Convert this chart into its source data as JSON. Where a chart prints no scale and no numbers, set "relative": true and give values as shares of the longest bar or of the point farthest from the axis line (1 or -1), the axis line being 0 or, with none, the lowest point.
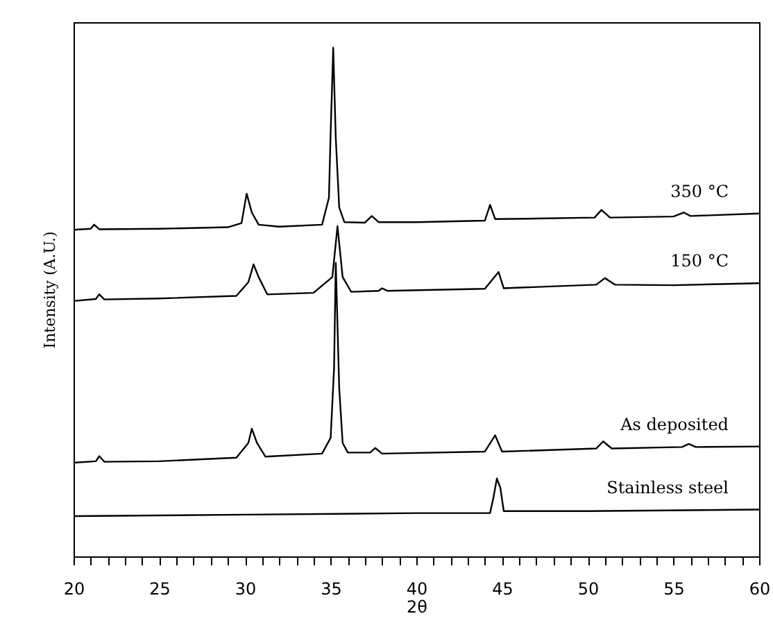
{
  "chart_data": {
    "type": "line",
    "relative": true,
    "xlabel": "2θ",
    "ylabel": "Intensity (A.U.)",
    "grid": false,
    "marker": "none",
    "line_style": "solid",
    "xlim": [
      20,
      60
    ],
    "xticks": [
      20,
      {
        "value": 21,
        "label": null
      },
      {
        "value": 22,
        "label": null
      },
      {
        "value": 23,
        "label": null
      },
      {
        "value": 24,
        "label": null
      },
      25,
      {
        "value": 26,
        "label": null
      },
      {
        "value": 27,
        "label": null
      },
      {
        "value": 28,
        "label": null
      },
      {
        "value": 29,
        "label": null
      },
      30,
      {
        "value": 31,
        "label": null
      },
      {
        "value": 32,
        "label": null
      },
      {
        "value": 33,
        "label": null
      },
      {
        "value": 34,
        "label": null
      },
      35,
      {
        "value": 36,
        "label": null
      },
      {
        "value": 37,
        "label": null
      },
      {
        "value": 38,
        "label": null
      },
      {
        "value": 39,
        "label": null
      },
      40,
      {
        "value": 41,
        "label": null
      },
      {
        "value": 42,
        "label": null
      },
      {
        "value": 43,
        "label": null
      },
      {
        "value": 44,
        "label": null
      },
      45,
      {
        "value": 46,
        "label": null
      },
      {
        "value": 47,
        "label": null
      },
      {
        "value": 48,
        "label": null
      },
      {
        "value": 49,
        "label": null
      },
      50,
      {
        "value": 51,
        "label": null
      },
      {
        "value": 52,
        "label": null
      },
      {
        "value": 53,
        "label": null
      },
      {
        "value": 54,
        "label": null
      },
      55,
      {
        "value": 56,
        "label": null
      },
      {
        "value": 57,
        "label": null
      },
      {
        "value": 58,
        "label": null
      },
      {
        "value": 59,
        "label": null
      },
      60
    ],
    "series": [
      {
        "name": "350 °C",
        "color": "#000000",
        "x": [
          20,
          21,
          21.2,
          21.5,
          25,
          29,
          29.8,
          30.1,
          30.4,
          30.8,
          32,
          34.5,
          34.9,
          35,
          35.15,
          35.3,
          35.5,
          35.8,
          37,
          37.4,
          37.8,
          40,
          44,
          44.3,
          44.6,
          47,
          50.4,
          50.8,
          51.3,
          55,
          55.6,
          56,
          60
        ],
        "values": [
          0.642,
          0.644,
          0.652,
          0.643,
          0.644,
          0.647,
          0.655,
          0.713,
          0.676,
          0.652,
          0.648,
          0.652,
          0.705,
          0.832,
          1.0,
          0.822,
          0.686,
          0.657,
          0.656,
          0.669,
          0.657,
          0.657,
          0.66,
          0.691,
          0.663,
          0.664,
          0.666,
          0.681,
          0.666,
          0.668,
          0.676,
          0.669,
          0.674
        ]
      },
      {
        "name": "150 °C",
        "color": "#000000",
        "x": [
          20,
          21.3,
          21.5,
          21.8,
          25,
          29.5,
          30.2,
          30.5,
          30.8,
          31.3,
          34,
          35.1,
          35.4,
          35.7,
          36.2,
          37.8,
          38,
          38.3,
          44,
          44.8,
          45.1,
          50.5,
          51,
          51.6,
          55,
          60
        ],
        "values": [
          0.502,
          0.506,
          0.515,
          0.505,
          0.507,
          0.512,
          0.539,
          0.574,
          0.549,
          0.515,
          0.518,
          0.549,
          0.649,
          0.549,
          0.52,
          0.522,
          0.527,
          0.522,
          0.526,
          0.559,
          0.527,
          0.534,
          0.547,
          0.534,
          0.533,
          0.537
        ]
      },
      {
        "name": "As deposited",
        "color": "#000000",
        "x": [
          20,
          21.3,
          21.5,
          21.8,
          25,
          29.5,
          30.2,
          30.4,
          30.7,
          31.2,
          34.5,
          35,
          35.2,
          35.3,
          35.5,
          35.7,
          36,
          37.3,
          37.6,
          38,
          44,
          44.6,
          45,
          50.5,
          50.9,
          51.4,
          55.5,
          55.9,
          56.3,
          60
        ],
        "values": [
          0.184,
          0.187,
          0.197,
          0.186,
          0.187,
          0.194,
          0.223,
          0.251,
          0.223,
          0.196,
          0.202,
          0.233,
          0.37,
          0.577,
          0.331,
          0.223,
          0.204,
          0.204,
          0.213,
          0.202,
          0.206,
          0.238,
          0.206,
          0.212,
          0.226,
          0.212,
          0.215,
          0.221,
          0.215,
          0.216
        ]
      },
      {
        "name": "Stainless steel",
        "color": "#000000",
        "x": [
          20,
          30,
          40,
          44.3,
          44.5,
          44.7,
          44.9,
          45.1,
          50,
          60
        ],
        "values": [
          0.079,
          0.082,
          0.085,
          0.085,
          0.116,
          0.153,
          0.135,
          0.089,
          0.089,
          0.092
        ]
      }
    ]
  }
}
